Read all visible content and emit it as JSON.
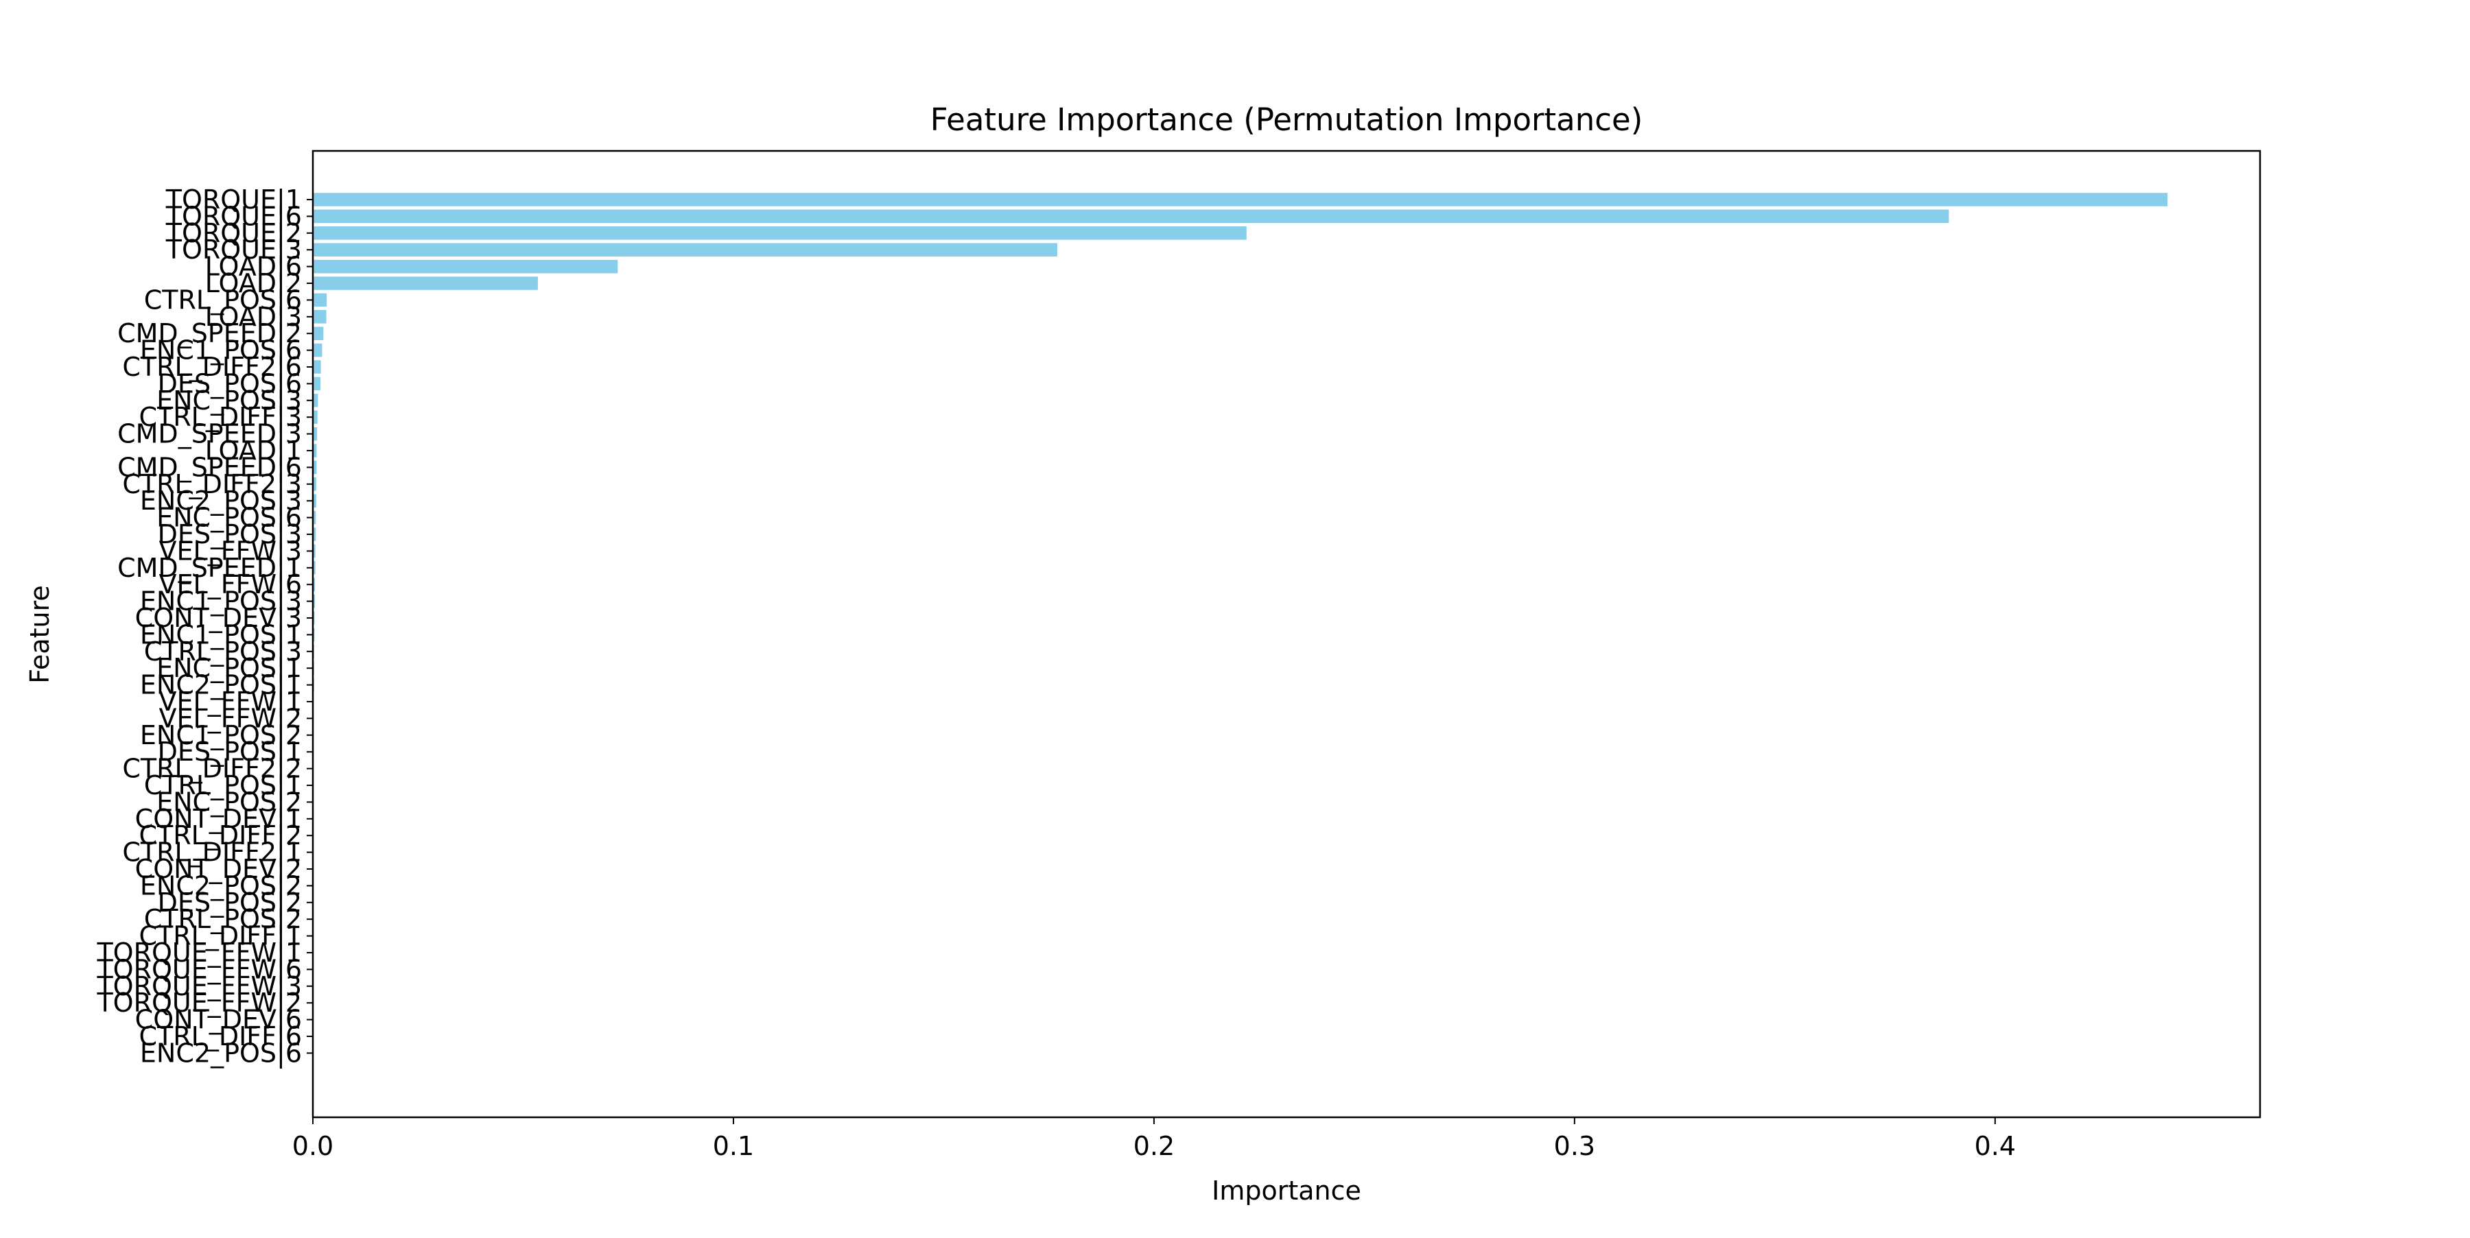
{
  "chart_data": {
    "type": "bar",
    "orientation": "horizontal",
    "title": "Feature Importance (Permutation Importance)",
    "xlabel": "Importance",
    "ylabel": "Feature",
    "xlim": [
      0,
      0.463
    ],
    "xticks": [
      "0.0",
      "0.1",
      "0.2",
      "0.3",
      "0.4"
    ],
    "xtick_values": [
      0.0,
      0.1,
      0.2,
      0.3,
      0.4
    ],
    "grid": false,
    "bar_color": "#87ceeb",
    "categories": [
      "TORQUE|1",
      "TORQUE|6",
      "TORQUE|2",
      "TORQUE|3",
      "LOAD|6",
      "LOAD|2",
      "CTRL_POS|6",
      "LOAD|3",
      "CMD_SPEED|2",
      "ENC1_POS|6",
      "CTRL_DIFF2|6",
      "DES_POS|6",
      "ENC_POS|3",
      "CTRL_DIFF|3",
      "CMD_SPEED|3",
      "LOAD|1",
      "CMD_SPEED|6",
      "CTRL_DIFF2|3",
      "ENC2_POS|3",
      "ENC_POS|6",
      "DES_POS|3",
      "VEL_FFW|3",
      "CMD_SPEED|1",
      "VEL_FFW|6",
      "ENC1_POS|3",
      "CONT_DEV|3",
      "ENC1_POS|1",
      "CTRL_POS|3",
      "ENC_POS|1",
      "ENC2_POS|1",
      "VEL_FFW|1",
      "VEL_FFW|2",
      "ENC1_POS|2",
      "DES_POS|1",
      "CTRL_DIFF2|2",
      "CTRL_POS|1",
      "ENC_POS|2",
      "CONT_DEV|1",
      "CTRL_DIFF|2",
      "CTRL_DIFF2|1",
      "CONT_DEV|2",
      "ENC2_POS|2",
      "DES_POS|2",
      "CTRL_POS|2",
      "CTRL_DIFF|1",
      "TORQUE_FFW|1",
      "TORQUE_FFW|6",
      "TORQUE_FFW|3",
      "TORQUE_FFW|2",
      "CONT_DEV|6",
      "CTRL_DIFF|6",
      "ENC2_POS|6"
    ],
    "values": [
      0.441,
      0.389,
      0.222,
      0.177,
      0.0725,
      0.0535,
      0.0033,
      0.0032,
      0.0025,
      0.0022,
      0.0019,
      0.0018,
      0.0012,
      0.0011,
      0.001,
      0.0009,
      0.0009,
      0.0008,
      0.0008,
      0.0007,
      0.0007,
      0.0006,
      0.0006,
      0.0005,
      0.0005,
      0.0004,
      0.0004,
      0.0003,
      0.0003,
      0.0003,
      0.0002,
      0.0002,
      0.0002,
      0.0002,
      0.0001,
      0.0001,
      0.0001,
      0.0001,
      0.0001,
      0.0001,
      0.0,
      0.0,
      0.0,
      0.0,
      0.0,
      0.0,
      0.0,
      0.0,
      0.0,
      0.0,
      0.0,
      0.0
    ]
  }
}
